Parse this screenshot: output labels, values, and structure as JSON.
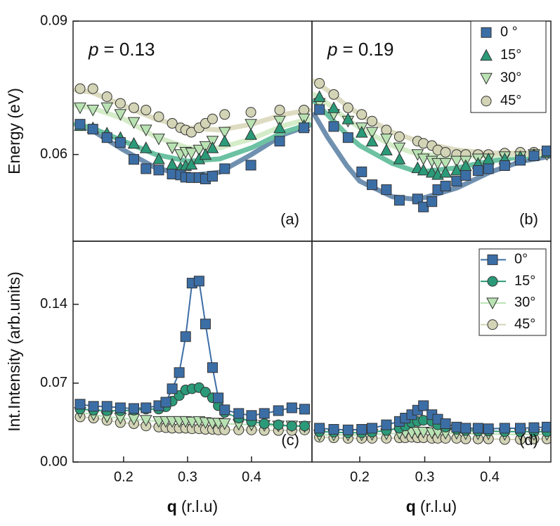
{
  "chart_data": [
    {
      "type": "scatter",
      "panel_label": "(a)",
      "annotation": {
        "symbol": "p",
        "text": "= 0.13"
      },
      "ylabel": "Energy (eV)",
      "xlim": [
        0.121,
        0.4945
      ],
      "ylim": [
        0.0405,
        0.09
      ],
      "yticks": [
        0.06,
        0.09
      ],
      "x": [
        0.132,
        0.152,
        0.174,
        0.195,
        0.216,
        0.235,
        0.255,
        0.276,
        0.289,
        0.297,
        0.306,
        0.318,
        0.328,
        0.339,
        0.358,
        0.399,
        0.444,
        0.482
      ],
      "series": [
        {
          "marker": "square",
          "color": "#3c6ea6",
          "values": [
            0.0668,
            0.0657,
            0.0638,
            0.0627,
            0.0589,
            0.0568,
            0.0565,
            0.0556,
            0.0554,
            0.0549,
            0.0548,
            0.0548,
            0.0545,
            0.0551,
            0.0568,
            0.0576,
            0.063,
            0.066
          ]
        },
        {
          "marker": "triangle-up",
          "color": "#2b9a78",
          "values": [
            0.0665,
            0.066,
            0.0648,
            0.0638,
            0.0625,
            0.0615,
            0.059,
            0.0578,
            0.057,
            0.0575,
            0.0578,
            0.059,
            0.06,
            0.0615,
            0.063,
            0.0645,
            0.066,
            0.0665
          ]
        },
        {
          "marker": "triangle-down",
          "color": "#b9e2b3",
          "values": [
            0.0705,
            0.07,
            0.0705,
            0.069,
            0.0672,
            0.0655,
            0.0635,
            0.0615,
            0.06,
            0.0605,
            0.0603,
            0.061,
            0.0618,
            0.063,
            0.065,
            0.0668,
            0.0675,
            0.068
          ]
        },
        {
          "marker": "circle",
          "color": "#d3d4b6",
          "values": [
            0.0748,
            0.0748,
            0.073,
            0.0715,
            0.0705,
            0.07,
            0.0685,
            0.067,
            0.066,
            0.0655,
            0.065,
            0.066,
            0.067,
            0.068,
            0.069,
            0.0695,
            0.07,
            0.07
          ]
        }
      ],
      "fits": [
        {
          "color": "#7090b0",
          "x": [
            0.125,
            0.15,
            0.2,
            0.25,
            0.3,
            0.35,
            0.4,
            0.45,
            0.49
          ],
          "values": [
            0.0668,
            0.0655,
            0.061,
            0.057,
            0.0552,
            0.056,
            0.06,
            0.0645,
            0.0665
          ]
        },
        {
          "color": "#6cc2a2",
          "x": [
            0.125,
            0.15,
            0.2,
            0.25,
            0.3,
            0.35,
            0.4,
            0.45,
            0.49
          ],
          "values": [
            0.0668,
            0.066,
            0.063,
            0.06,
            0.0585,
            0.059,
            0.0615,
            0.065,
            0.0668
          ]
        },
        {
          "color": "#d4ecc8",
          "x": [
            0.125,
            0.15,
            0.2,
            0.25,
            0.3,
            0.35,
            0.4,
            0.45,
            0.49
          ],
          "values": [
            0.071,
            0.0705,
            0.068,
            0.064,
            0.0615,
            0.0615,
            0.0635,
            0.0665,
            0.068
          ]
        },
        {
          "color": "#dddcc2",
          "x": [
            0.125,
            0.15,
            0.2,
            0.25,
            0.3,
            0.35,
            0.4,
            0.45,
            0.49
          ],
          "values": [
            0.0745,
            0.074,
            0.071,
            0.068,
            0.066,
            0.0655,
            0.0668,
            0.069,
            0.07
          ]
        }
      ]
    },
    {
      "type": "scatter",
      "panel_label": "(b)",
      "annotation": {
        "symbol": "p",
        "text": "= 0.19"
      },
      "xlim": [
        0.1265,
        0.494
      ],
      "ylim": [
        0.0405,
        0.09
      ],
      "legend": "upper right",
      "x": [
        0.138,
        0.16,
        0.182,
        0.203,
        0.219,
        0.241,
        0.261,
        0.289,
        0.298,
        0.311,
        0.32,
        0.332,
        0.349,
        0.363,
        0.382,
        0.398,
        0.423,
        0.447,
        0.468,
        0.488
      ],
      "series": [
        {
          "name": "0 °",
          "marker": "square",
          "color": "#3c6ea6",
          "values": [
            0.0701,
            0.0663,
            0.0638,
            0.0561,
            0.0532,
            0.0521,
            0.0497,
            0.05,
            0.0482,
            0.0494,
            0.0521,
            0.0529,
            0.054,
            0.0553,
            0.0564,
            0.0568,
            0.0575,
            0.0587,
            0.0597,
            0.0608
          ]
        },
        {
          "name": "15°",
          "marker": "triangle-up",
          "color": "#2b9a78",
          "values": [
            0.073,
            0.0705,
            0.068,
            0.065,
            0.063,
            0.061,
            0.059,
            0.057,
            0.0565,
            0.056,
            0.0555,
            0.056,
            0.0565,
            0.0575,
            0.058,
            0.059,
            0.059,
            0.0595,
            0.06,
            0.0605
          ]
        },
        {
          "name": "30°",
          "marker": "triangle-down",
          "color": "#b9e2b3",
          "values": [
            0.0715,
            0.069,
            0.0675,
            0.066,
            0.065,
            0.0635,
            0.0615,
            0.06,
            0.059,
            0.0585,
            0.058,
            0.058,
            0.0585,
            0.0585,
            0.059,
            0.059,
            0.0595,
            0.0595,
            0.06,
            0.06
          ]
        },
        {
          "name": "45°",
          "marker": "circle",
          "color": "#d3d4b6",
          "values": [
            0.076,
            0.0735,
            0.0705,
            0.069,
            0.0675,
            0.0655,
            0.064,
            0.063,
            0.0625,
            0.062,
            0.061,
            0.0605,
            0.06,
            0.06,
            0.06,
            0.06,
            0.0603,
            0.0605,
            0.0605,
            0.0605
          ]
        }
      ],
      "fits": [
        {
          "color": "#7090b0",
          "x": [
            0.13,
            0.15,
            0.18,
            0.2,
            0.25,
            0.28,
            0.3,
            0.35,
            0.4,
            0.45,
            0.49
          ],
          "values": [
            0.069,
            0.064,
            0.0575,
            0.054,
            0.0505,
            0.05,
            0.0503,
            0.0525,
            0.056,
            0.0585,
            0.0595
          ]
        },
        {
          "color": "#6cc2a2",
          "x": [
            0.13,
            0.15,
            0.18,
            0.2,
            0.25,
            0.28,
            0.3,
            0.35,
            0.4,
            0.45,
            0.49
          ],
          "values": [
            0.072,
            0.069,
            0.0645,
            0.062,
            0.058,
            0.0565,
            0.0562,
            0.057,
            0.0585,
            0.0595,
            0.06
          ]
        },
        {
          "color": "#d4ecc8",
          "x": [
            0.13,
            0.15,
            0.18,
            0.2,
            0.25,
            0.28,
            0.3,
            0.35,
            0.4,
            0.45,
            0.49
          ],
          "values": [
            0.0735,
            0.0715,
            0.068,
            0.066,
            0.062,
            0.0605,
            0.06,
            0.0595,
            0.0598,
            0.06,
            0.0602
          ]
        },
        {
          "color": "#dddcc2",
          "x": [
            0.13,
            0.15,
            0.18,
            0.2,
            0.25,
            0.28,
            0.3,
            0.35,
            0.4,
            0.45,
            0.49
          ],
          "values": [
            0.0765,
            0.0745,
            0.071,
            0.069,
            0.065,
            0.0635,
            0.0625,
            0.061,
            0.0603,
            0.0603,
            0.0605
          ]
        }
      ]
    },
    {
      "type": "line",
      "panel_label": "(c)",
      "ylabel": "Int.Intensity (arb.units)",
      "xlabel": {
        "symbol": "q",
        "text": "(r.l.u)"
      },
      "xlim": [
        0.121,
        0.4945
      ],
      "ylim": [
        0,
        0.196
      ],
      "xticks": [
        0.2,
        0.3,
        0.4
      ],
      "yticks": [
        {
          "value": 0,
          "label": "0.00"
        },
        0.07,
        0.14
      ],
      "x": [
        0.132,
        0.153,
        0.174,
        0.195,
        0.216,
        0.235,
        0.255,
        0.266,
        0.276,
        0.287,
        0.297,
        0.307,
        0.318,
        0.328,
        0.339,
        0.348,
        0.358,
        0.38,
        0.4,
        0.42,
        0.442,
        0.463,
        0.483
      ],
      "series": [
        {
          "marker": "square",
          "color": "#3c6ea6",
          "values": [
            0.0513,
            0.0494,
            0.0494,
            0.0481,
            0.0475,
            0.0481,
            0.05,
            0.0531,
            0.065,
            0.0794,
            0.1113,
            0.1588,
            0.1606,
            0.1225,
            0.0838,
            0.0569,
            0.0463,
            0.0431,
            0.0413,
            0.0431,
            0.0456,
            0.0481,
            0.0469
          ]
        },
        {
          "marker": "circle",
          "color": "#2b9a78",
          "values": [
            0.047,
            0.046,
            0.0455,
            0.0455,
            0.046,
            0.047,
            0.047,
            0.049,
            0.054,
            0.059,
            0.064,
            0.065,
            0.066,
            0.062,
            0.057,
            0.05,
            0.044,
            0.039,
            0.036,
            0.034,
            0.033,
            0.032,
            0.032
          ]
        },
        {
          "marker": "triangle-down",
          "color": "#b9e2b3",
          "values": [
            0.044,
            0.042,
            0.04,
            0.039,
            0.038,
            0.037,
            0.036,
            0.036,
            0.036,
            0.036,
            0.036,
            0.0355,
            0.036,
            0.035,
            0.0345,
            0.0345,
            0.034,
            0.0335,
            0.033,
            0.0325,
            0.032,
            0.032,
            0.0315
          ]
        },
        {
          "marker": "circle",
          "color": "#d3d4b6",
          "values": [
            0.04,
            0.039,
            0.037,
            0.035,
            0.034,
            0.032,
            0.031,
            0.0305,
            0.03,
            0.03,
            0.03,
            0.0295,
            0.0295,
            0.029,
            0.029,
            0.0285,
            0.0285,
            0.0285,
            0.0285,
            0.028,
            0.028,
            0.028,
            0.0285
          ]
        }
      ]
    },
    {
      "type": "line",
      "panel_label": "(d)",
      "legend": "upper right",
      "xlabel": {
        "symbol": "q",
        "text": "(r.l.u)"
      },
      "xlim": [
        0.1265,
        0.494
      ],
      "ylim": [
        0,
        0.196
      ],
      "xticks": [
        0.2,
        0.3,
        0.4
      ],
      "x": [
        0.138,
        0.16,
        0.182,
        0.203,
        0.219,
        0.241,
        0.261,
        0.27,
        0.28,
        0.289,
        0.298,
        0.311,
        0.32,
        0.332,
        0.349,
        0.363,
        0.382,
        0.398,
        0.423,
        0.447,
        0.468,
        0.488
      ],
      "series": [
        {
          "name": "0°",
          "marker": "square",
          "color": "#3c6ea6",
          "values": [
            0.03,
            0.029,
            0.0285,
            0.029,
            0.03,
            0.033,
            0.036,
            0.039,
            0.042,
            0.046,
            0.05,
            0.042,
            0.038,
            0.034,
            0.031,
            0.03,
            0.03,
            0.0295,
            0.03,
            0.03,
            0.0305,
            0.031
          ]
        },
        {
          "name": "15°",
          "marker": "circle",
          "color": "#2b9a78",
          "values": [
            0.027,
            0.0265,
            0.026,
            0.026,
            0.0265,
            0.028,
            0.03,
            0.032,
            0.035,
            0.036,
            0.037,
            0.036,
            0.033,
            0.031,
            0.029,
            0.028,
            0.0275,
            0.0275,
            0.027,
            0.027,
            0.027,
            0.027
          ]
        },
        {
          "name": "30°",
          "marker": "triangle-down",
          "color": "#b9e2b3",
          "values": [
            0.024,
            0.024,
            0.024,
            0.024,
            0.0245,
            0.025,
            0.0255,
            0.026,
            0.026,
            0.0265,
            0.0265,
            0.026,
            0.026,
            0.0255,
            0.0255,
            0.025,
            0.025,
            0.025,
            0.0245,
            0.0245,
            0.0245,
            0.0245
          ]
        },
        {
          "name": "45°",
          "marker": "circle",
          "color": "#d3d4b6",
          "values": [
            0.022,
            0.0215,
            0.021,
            0.021,
            0.021,
            0.021,
            0.0215,
            0.0215,
            0.022,
            0.0215,
            0.0215,
            0.021,
            0.021,
            0.021,
            0.021,
            0.0205,
            0.0205,
            0.0205,
            0.02,
            0.02,
            0.0205,
            0.0205
          ]
        }
      ]
    }
  ]
}
